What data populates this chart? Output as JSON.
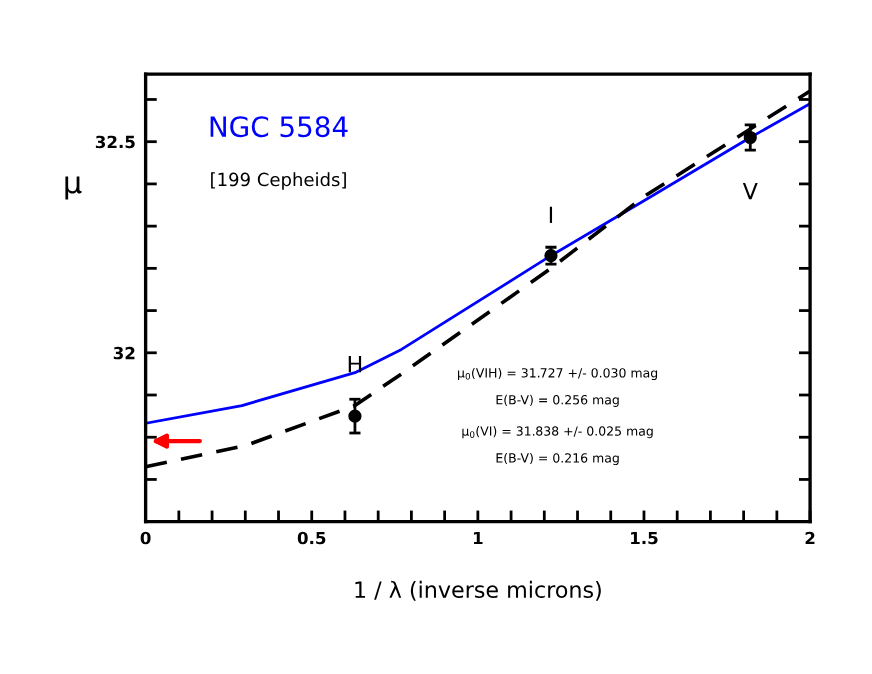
{
  "chart_data": {
    "type": "line",
    "title": "NGC 5584",
    "subtitle": "[199 Cepheids]",
    "xlabel": "1 / λ (inverse microns)",
    "ylabel": "μ",
    "series": [
      {
        "color": "#0000ff",
        "line_style": "solid",
        "x": [
          0,
          0.29,
          0.63,
          0.77,
          1.22,
          1.5,
          1.82,
          2
        ],
        "values": [
          31.833,
          31.875,
          31.953,
          32.008,
          32.23,
          32.36,
          32.51,
          32.59
        ]
      },
      {
        "color": "#000000",
        "line_style": "dashed",
        "x": [
          0,
          0.3,
          0.63,
          0.77,
          1.22,
          1.5,
          1.82,
          2
        ],
        "values": [
          31.73,
          31.78,
          31.875,
          31.95,
          32.2,
          32.37,
          32.53,
          32.62
        ]
      },
      {
        "type": "scatter",
        "color": "#000000",
        "marker": "circle",
        "x": [
          0.63,
          1.22,
          1.82
        ],
        "values": [
          31.85,
          32.23,
          32.51
        ],
        "errors": [
          0.04,
          0.02,
          0.03
        ]
      }
    ],
    "annotations": [
      {
        "text": "H",
        "x": 0.63,
        "y": 31.85
      },
      {
        "text": "I",
        "x": 1.22,
        "y": 32.23
      },
      {
        "text": "V",
        "x": 1.82,
        "y": 32.51
      },
      "μ$_{0}$(VIH) = 31.727 +/- 0.030 mag",
      "E(B-V) = 0.256 mag",
      "μ$_{0}$(VI) = 31.838 +/- 0.025 mag",
      "E(B-V) = 0.216 mag"
    ],
    "xlim": [
      0,
      2
    ],
    "ylim": [
      31.6,
      32.66
    ],
    "xticks": [
      0,
      0.5,
      1,
      1.5,
      2,
      {
        "value": 0.1,
        "label": null
      },
      {
        "value": 0.2,
        "label": null
      },
      {
        "value": 0.3,
        "label": null
      },
      {
        "value": 0.4,
        "label": null
      },
      {
        "value": 0.6,
        "label": null
      },
      {
        "value": 0.7,
        "label": null
      },
      {
        "value": 0.8,
        "label": null
      },
      {
        "value": 0.9,
        "label": null
      },
      {
        "value": 1.1,
        "label": null
      },
      {
        "value": 1.2,
        "label": null
      },
      {
        "value": 1.3,
        "label": null
      },
      {
        "value": 1.4,
        "label": null
      },
      {
        "value": 1.6,
        "label": null
      },
      {
        "value": 1.7,
        "label": null
      },
      {
        "value": 1.8,
        "label": null
      },
      {
        "value": 1.9,
        "label": null
      }
    ],
    "yticks": [
      32,
      32.5,
      {
        "value": 31.7,
        "label": null
      },
      {
        "value": 31.8,
        "label": null
      },
      {
        "value": 31.9,
        "label": null
      },
      {
        "value": 32.1,
        "label": null
      },
      {
        "value": 32.2,
        "label": null
      },
      {
        "value": 32.3,
        "label": null
      },
      {
        "value": 32.4,
        "label": null
      },
      {
        "value": 32.6,
        "label": null
      }
    ],
    "grid": false,
    "legend": false
  }
}
